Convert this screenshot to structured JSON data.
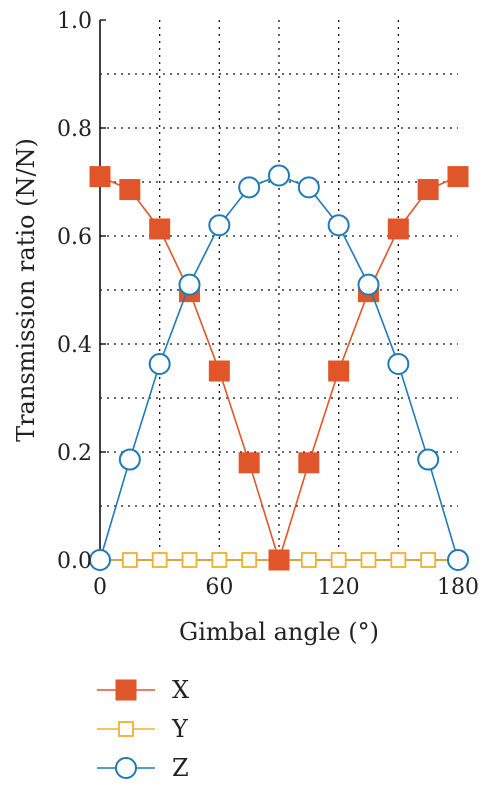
{
  "chart_data": {
    "type": "line",
    "title": "",
    "xlabel": "Gimbal angle (°)",
    "ylabel": "Transmission ratio (N/N)",
    "xlim": [
      0,
      180
    ],
    "ylim": [
      0,
      1.0
    ],
    "xticks": [
      0,
      60,
      120,
      180
    ],
    "yticks": [
      0.0,
      0.2,
      0.4,
      0.6,
      0.8,
      1.0
    ],
    "ytick_labels": [
      "0.0",
      "0.2",
      "0.4",
      "0.6",
      "0.8",
      "1.0"
    ],
    "xgrid_step": 30,
    "ygrid_step": 0.1,
    "grid": true,
    "grid_style": "dotted",
    "legend_position": "below",
    "x": [
      0,
      15,
      30,
      45,
      60,
      75,
      90,
      105,
      120,
      135,
      150,
      165,
      180
    ],
    "series": [
      {
        "name": "X",
        "color": "#e0562a",
        "marker": "filled-square",
        "values": [
          0.71,
          0.686,
          0.613,
          0.497,
          0.35,
          0.18,
          0.0,
          0.18,
          0.35,
          0.497,
          0.613,
          0.686,
          0.71
        ]
      },
      {
        "name": "Y",
        "color": "#f0b030",
        "marker": "open-square",
        "values": [
          0.0,
          0.0,
          0.0,
          0.0,
          0.0,
          0.0,
          0.0,
          0.0,
          0.0,
          0.0,
          0.0,
          0.0,
          0.0
        ]
      },
      {
        "name": "Z",
        "color": "#1f7ab8",
        "marker": "open-circle",
        "values": [
          0.0,
          0.186,
          0.363,
          0.51,
          0.62,
          0.69,
          0.712,
          0.69,
          0.62,
          0.51,
          0.363,
          0.186,
          0.0
        ]
      }
    ]
  }
}
